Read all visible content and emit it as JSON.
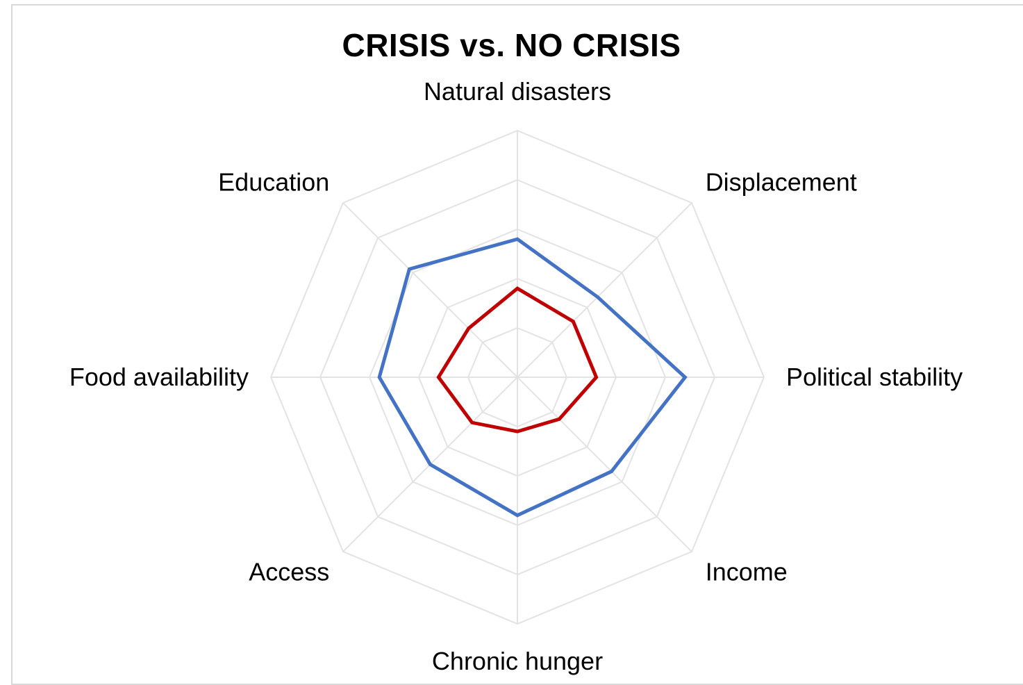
{
  "chart_data": {
    "type": "radar",
    "title": "CRISIS vs. NO CRISIS",
    "categories": [
      "Natural disasters",
      "Displacement",
      "Political stability",
      "Income",
      "Chronic hunger",
      "Access",
      "Food availability",
      "Education"
    ],
    "rlim": [
      0,
      5
    ],
    "grid": true,
    "legend": "none",
    "series": [
      {
        "color": "#4472c4",
        "values": [
          2.8,
          2.3,
          3.4,
          2.7,
          2.8,
          2.5,
          2.8,
          3.1
        ]
      },
      {
        "color": "#c00000",
        "values": [
          1.8,
          1.6,
          1.6,
          1.2,
          1.1,
          1.3,
          1.6,
          1.4
        ]
      }
    ]
  }
}
